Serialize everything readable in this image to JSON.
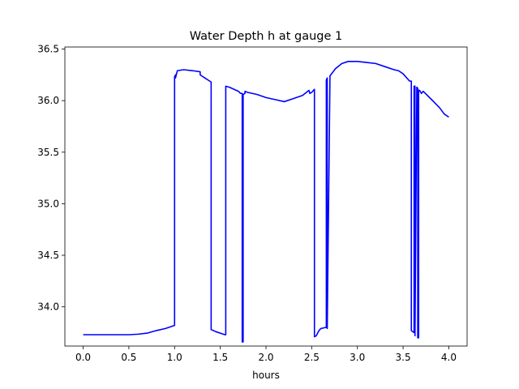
{
  "chart_data": {
    "type": "line",
    "title": "Water Depth h at gauge 1",
    "xlabel": "hours",
    "ylabel": "",
    "xlim": [
      -0.2,
      4.2
    ],
    "ylim": [
      33.62,
      36.52
    ],
    "xticks": [
      0.0,
      0.5,
      1.0,
      1.5,
      2.0,
      2.5,
      3.0,
      3.5,
      4.0
    ],
    "xtick_labels": [
      "0.0",
      "0.5",
      "1.0",
      "1.5",
      "2.0",
      "2.5",
      "3.0",
      "3.5",
      "4.0"
    ],
    "yticks": [
      34.0,
      34.5,
      35.0,
      35.5,
      36.0,
      36.5
    ],
    "ytick_labels": [
      "34.0",
      "34.5",
      "35.0",
      "35.5",
      "36.0",
      "36.5"
    ],
    "grid": false,
    "series": [
      {
        "color": "#0000ff",
        "x": [
          0.0,
          0.5,
          0.6,
          0.7,
          0.8,
          0.9,
          1.0,
          1.0,
          1.01,
          1.01,
          1.03,
          1.1,
          1.2,
          1.28,
          1.28,
          1.4,
          1.4,
          1.45,
          1.55,
          1.56,
          1.56,
          1.6,
          1.7,
          1.72,
          1.74,
          1.74,
          1.75,
          1.75,
          1.77,
          1.77,
          1.8,
          1.9,
          2.0,
          2.1,
          2.2,
          2.3,
          2.4,
          2.47,
          2.48,
          2.5,
          2.53,
          2.53,
          2.55,
          2.58,
          2.58,
          2.6,
          2.65,
          2.66,
          2.66,
          2.67,
          2.67,
          2.7,
          2.76,
          2.83,
          2.9,
          3.0,
          3.1,
          3.2,
          3.3,
          3.4,
          3.45,
          3.5,
          3.57,
          3.59,
          3.59,
          3.62,
          3.62,
          3.63,
          3.63,
          3.65,
          3.66,
          3.66,
          3.67,
          3.67,
          3.68,
          3.7,
          3.72,
          3.8,
          3.9,
          3.95,
          4.0
        ],
        "y": [
          33.73,
          33.73,
          33.735,
          33.745,
          33.77,
          33.79,
          33.82,
          36.23,
          36.25,
          36.22,
          36.29,
          36.3,
          36.29,
          36.28,
          36.25,
          36.18,
          33.78,
          33.76,
          33.73,
          33.73,
          36.14,
          36.13,
          36.09,
          36.07,
          36.07,
          33.66,
          33.66,
          36.06,
          36.07,
          36.09,
          36.08,
          36.06,
          36.03,
          36.01,
          35.99,
          36.02,
          36.05,
          36.1,
          36.07,
          36.08,
          36.11,
          33.71,
          33.72,
          33.77,
          33.77,
          33.79,
          33.8,
          33.8,
          36.2,
          36.22,
          33.79,
          36.24,
          36.31,
          36.36,
          36.38,
          36.38,
          36.37,
          36.36,
          36.33,
          36.3,
          36.29,
          36.26,
          36.19,
          36.19,
          33.77,
          33.75,
          36.14,
          36.14,
          33.72,
          36.13,
          36.12,
          33.7,
          33.7,
          36.1,
          36.1,
          36.07,
          36.09,
          36.02,
          35.93,
          35.87,
          35.84
        ]
      }
    ]
  }
}
